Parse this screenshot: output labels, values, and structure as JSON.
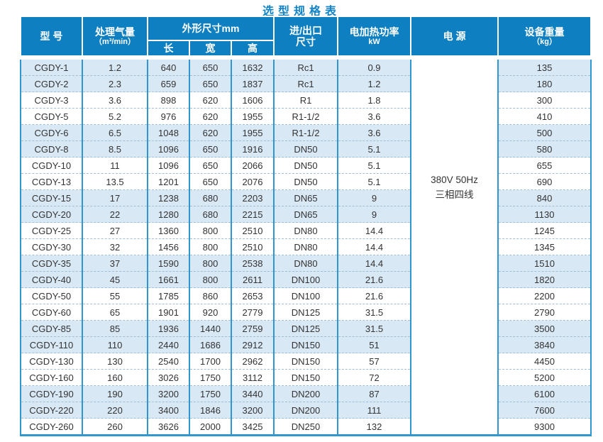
{
  "page": {
    "title": "选型规格表"
  },
  "colors": {
    "header_blue": "#0e80c2",
    "grid_blue": "#2f96d0",
    "row_shade_blue": "#d9e8f5",
    "title_blue": "#1283c6",
    "dashed_separator": "#a0bed4",
    "body_text": "#333333"
  },
  "table": {
    "headers": {
      "model": "型 号",
      "capacity_line1": "处理气量",
      "capacity_line2": "（m³/min）",
      "dimensions_group": "外形尺寸mm",
      "dim_length": "长",
      "dim_width": "宽",
      "dim_height": "高",
      "inlet_line1": "进/出口",
      "inlet_line2": "尺寸",
      "heater_line1": "电加热功率",
      "heater_line2": "kW",
      "power_supply": "电 源",
      "weight_line1": "设备重量",
      "weight_line2": "（kg）"
    },
    "power_supply_value": {
      "line1": "380V 50Hz",
      "line2": "三相四线"
    },
    "rows": [
      {
        "model": "CGDY-1",
        "capacity": "1.2",
        "length": "640",
        "width": "650",
        "height": "1632",
        "inlet": "Rc1",
        "heater_kw": "0.9",
        "weight": "135"
      },
      {
        "model": "CGDY-2",
        "capacity": "2.3",
        "length": "659",
        "width": "650",
        "height": "1837",
        "inlet": "Rc1",
        "heater_kw": "1.2",
        "weight": "180"
      },
      {
        "model": "CGDY-3",
        "capacity": "3.6",
        "length": "898",
        "width": "620",
        "height": "1606",
        "inlet": "R1",
        "heater_kw": "1.8",
        "weight": "300"
      },
      {
        "model": "CGDY-5",
        "capacity": "5.2",
        "length": "976",
        "width": "620",
        "height": "1955",
        "inlet": "R1-1/2",
        "heater_kw": "3.6",
        "weight": "410"
      },
      {
        "model": "CGDY-6",
        "capacity": "6.5",
        "length": "1048",
        "width": "620",
        "height": "1955",
        "inlet": "R1-1/2",
        "heater_kw": "3.6",
        "weight": "500"
      },
      {
        "model": "CGDY-8",
        "capacity": "8.5",
        "length": "1096",
        "width": "650",
        "height": "1916",
        "inlet": "DN50",
        "heater_kw": "5.1",
        "weight": "580"
      },
      {
        "model": "CGDY-10",
        "capacity": "11",
        "length": "1096",
        "width": "650",
        "height": "2066",
        "inlet": "DN50",
        "heater_kw": "5.1",
        "weight": "655"
      },
      {
        "model": "CGDY-13",
        "capacity": "13.5",
        "length": "1201",
        "width": "650",
        "height": "2076",
        "inlet": "DN50",
        "heater_kw": "5.1",
        "weight": "690"
      },
      {
        "model": "CGDY-15",
        "capacity": "17",
        "length": "1238",
        "width": "680",
        "height": "2203",
        "inlet": "DN65",
        "heater_kw": "9",
        "weight": "840"
      },
      {
        "model": "CGDY-20",
        "capacity": "22",
        "length": "1280",
        "width": "680",
        "height": "2215",
        "inlet": "DN65",
        "heater_kw": "9",
        "weight": "1130"
      },
      {
        "model": "CGDY-25",
        "capacity": "27",
        "length": "1360",
        "width": "800",
        "height": "2510",
        "inlet": "DN80",
        "heater_kw": "14.4",
        "weight": "1245"
      },
      {
        "model": "CGDY-30",
        "capacity": "32",
        "length": "1456",
        "width": "800",
        "height": "2510",
        "inlet": "DN80",
        "heater_kw": "14.4",
        "weight": "1345"
      },
      {
        "model": "CGDY-35",
        "capacity": "37",
        "length": "1590",
        "width": "800",
        "height": "2538",
        "inlet": "DN80",
        "heater_kw": "14.4",
        "weight": "1510"
      },
      {
        "model": "CGDY-40",
        "capacity": "45",
        "length": "1661",
        "width": "800",
        "height": "2611",
        "inlet": "DN100",
        "heater_kw": "21.6",
        "weight": "1820"
      },
      {
        "model": "CGDY-50",
        "capacity": "55",
        "length": "1785",
        "width": "860",
        "height": "2653",
        "inlet": "DN100",
        "heater_kw": "21.6",
        "weight": "2200"
      },
      {
        "model": "CGDY-60",
        "capacity": "65",
        "length": "1901",
        "width": "920",
        "height": "2779",
        "inlet": "DN125",
        "heater_kw": "31.5",
        "weight": "2790"
      },
      {
        "model": "CGDY-85",
        "capacity": "85",
        "length": "1936",
        "width": "1440",
        "height": "2759",
        "inlet": "DN125",
        "heater_kw": "31.5",
        "weight": "3500"
      },
      {
        "model": "CGDY-110",
        "capacity": "110",
        "length": "2440",
        "width": "1686",
        "height": "2912",
        "inlet": "DN150",
        "heater_kw": "51",
        "weight": "3840"
      },
      {
        "model": "CGDY-130",
        "capacity": "130",
        "length": "2540",
        "width": "1700",
        "height": "2962",
        "inlet": "DN150",
        "heater_kw": "57",
        "weight": "4450"
      },
      {
        "model": "CGDY-160",
        "capacity": "160",
        "length": "3026",
        "width": "1750",
        "height": "3112",
        "inlet": "DN150",
        "heater_kw": "72",
        "weight": "5200"
      },
      {
        "model": "CGDY-190",
        "capacity": "190",
        "length": "3200",
        "width": "1750",
        "height": "3440",
        "inlet": "DN200",
        "heater_kw": "87",
        "weight": "6100"
      },
      {
        "model": "CGDY-220",
        "capacity": "220",
        "length": "3400",
        "width": "1846",
        "height": "3200",
        "inlet": "DN200",
        "heater_kw": "111",
        "weight": "7600"
      },
      {
        "model": "CGDY-260",
        "capacity": "260",
        "length": "3626",
        "width": "2000",
        "height": "3425",
        "inlet": "DN250",
        "heater_kw": "132",
        "weight": "9300"
      }
    ]
  }
}
